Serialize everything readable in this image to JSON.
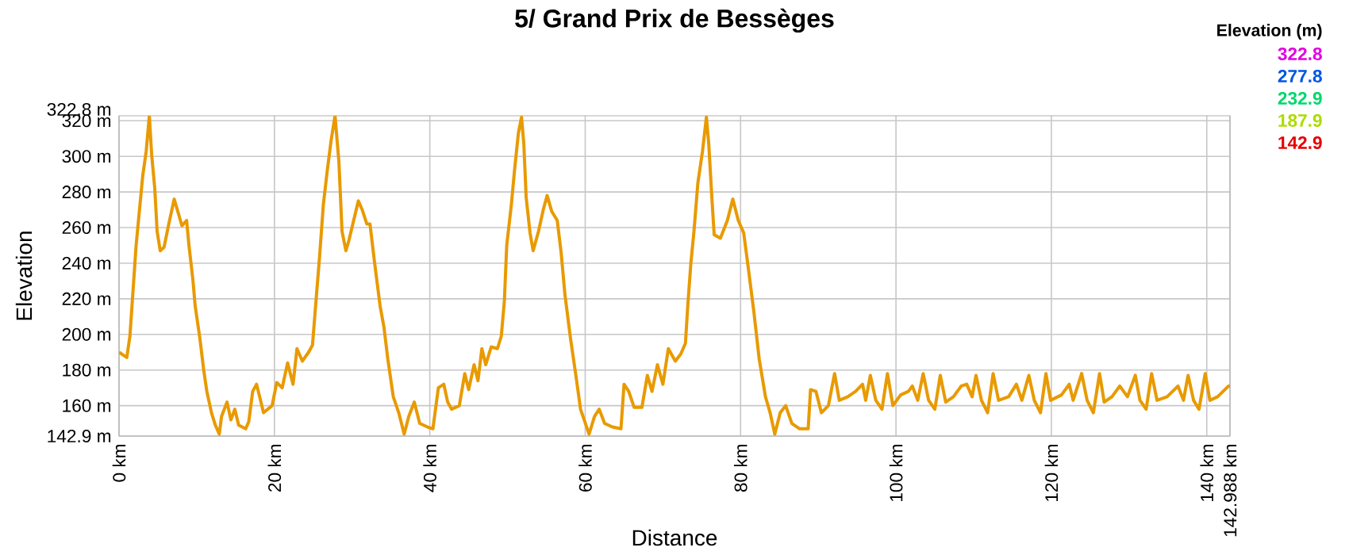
{
  "chart_data": {
    "type": "line",
    "title": "5/ Grand Prix de Bessèges",
    "xlabel": "Distance",
    "ylabel": "Elevation",
    "legend_title": "Elevation (m)",
    "annotations": [
      "322.8",
      "277.8",
      "232.9",
      "187.9",
      "142.9"
    ],
    "x": [
      0,
      1.0,
      1.4,
      1.7,
      2.2,
      2.7,
      3.05,
      3.5,
      3.9,
      4.2,
      4.6,
      4.9,
      5.3,
      5.8,
      6.4,
      7.1,
      7.7,
      8.1,
      8.7,
      9.0,
      9.5,
      9.8,
      10.4,
      10.9,
      11.3,
      11.9,
      12.4,
      12.9,
      13.2,
      13.9,
      14.4,
      14.9,
      15.4,
      16.3,
      16.7,
      17.2,
      17.7,
      18.1,
      18.6,
      19.7,
      20.3,
      21.0,
      21.7,
      22.4,
      22.9,
      23.6,
      24.4,
      24.9,
      25.3,
      25.8,
      26.3,
      26.8,
      27.3,
      27.8,
      28.3,
      28.7,
      29.2,
      29.6,
      30.2,
      30.8,
      31.3,
      31.9,
      32.3,
      32.9,
      33.6,
      34.1,
      34.6,
      35.3,
      36.0,
      36.7,
      37.3,
      38.0,
      38.7,
      39.7,
      40.4,
      41.1,
      41.8,
      42.3,
      42.8,
      43.8,
      44.5,
      45.0,
      45.7,
      46.2,
      46.7,
      47.2,
      47.9,
      48.7,
      49.2,
      49.6,
      49.9,
      50.5,
      50.9,
      51.4,
      51.8,
      52.1,
      52.4,
      52.9,
      53.3,
      54.0,
      54.6,
      55.1,
      55.7,
      56.4,
      56.9,
      57.4,
      58.1,
      58.8,
      59.4,
      60.5,
      61.2,
      61.8,
      62.5,
      63.5,
      64.6,
      65.0,
      65.6,
      66.3,
      67.3,
      68.0,
      68.6,
      69.3,
      70.0,
      70.7,
      71.6,
      72.3,
      72.9,
      73.2,
      73.6,
      74.0,
      74.5,
      75.1,
      75.6,
      75.9,
      76.3,
      76.6,
      77.4,
      78.3,
      79.0,
      79.7,
      80.4,
      81.0,
      81.7,
      82.4,
      83.2,
      83.8,
      84.4,
      85.1,
      85.8,
      86.6,
      87.6,
      88.7,
      89.0,
      89.7,
      90.4,
      91.3,
      92.1,
      92.7,
      93.8,
      94.8,
      95.7,
      96.1,
      96.7,
      97.4,
      98.2,
      98.9,
      99.6,
      100.6,
      101.6,
      102.1,
      102.8,
      103.5,
      104.2,
      105.0,
      105.7,
      106.4,
      107.4,
      108.4,
      109.1,
      109.8,
      110.3,
      111.0,
      111.8,
      112.5,
      113.2,
      114.5,
      115.5,
      116.2,
      117.1,
      117.8,
      118.6,
      119.3,
      119.9,
      121.3,
      122.3,
      122.8,
      123.9,
      124.6,
      125.4,
      126.2,
      126.8,
      127.8,
      128.8,
      129.8,
      130.8,
      131.4,
      132.2,
      132.9,
      133.6,
      134.9,
      136.3,
      137.0,
      137.6,
      138.3,
      139.0,
      139.8,
      140.4,
      141.4,
      142.8,
      142.988
    ],
    "series": [
      {
        "color": "#e89a00",
        "values": [
          190,
          187,
          199,
          218,
          250,
          273,
          289,
          303,
          322.8,
          301,
          282,
          258,
          247,
          249,
          262,
          276,
          267,
          261,
          264,
          250,
          231,
          216,
          198,
          180,
          168,
          156,
          149,
          144,
          154,
          162,
          152,
          158,
          149,
          147,
          151,
          168,
          172,
          165,
          156,
          160,
          173,
          170,
          184,
          172,
          192,
          185,
          190,
          194,
          216,
          243,
          273,
          292,
          309,
          322.8,
          297,
          258,
          247,
          253,
          264,
          275,
          270,
          262,
          262,
          240,
          216,
          204,
          186,
          165,
          156,
          144,
          154,
          162,
          150,
          148,
          147,
          170,
          172,
          162,
          158,
          160,
          178,
          169,
          183,
          174,
          192,
          183,
          193,
          192,
          199,
          219,
          250,
          273,
          292,
          313,
          322,
          307,
          277,
          257,
          247,
          258,
          270,
          278,
          269,
          264,
          246,
          222,
          198,
          177,
          158,
          144,
          154,
          158,
          150,
          148,
          147,
          172,
          168,
          159,
          159,
          177,
          168,
          183,
          172,
          192,
          185,
          189,
          195,
          216,
          240,
          258,
          285,
          303,
          322,
          307,
          277,
          256,
          254,
          264,
          276,
          264,
          257,
          237,
          213,
          186,
          165,
          156,
          144,
          156,
          160,
          150,
          147,
          147,
          169,
          168,
          156,
          160,
          178,
          163,
          165,
          168,
          172,
          163,
          177,
          163,
          158,
          178,
          160,
          166,
          168,
          171,
          163,
          178,
          163,
          158,
          177,
          162,
          165,
          171,
          172,
          165,
          177,
          163,
          156,
          178,
          163,
          165,
          172,
          163,
          177,
          163,
          156,
          178,
          163,
          166,
          172,
          163,
          178,
          163,
          156,
          178,
          162,
          165,
          171,
          165,
          177,
          163,
          158,
          178,
          163,
          165,
          171,
          163,
          177,
          163,
          158,
          178,
          163,
          165,
          171,
          171
        ]
      }
    ],
    "xlim": [
      0,
      142.988
    ],
    "ylim": [
      142.9,
      322.8
    ],
    "xticks": [
      {
        "value": 0,
        "label": "0 km"
      },
      {
        "value": 20,
        "label": "20 km"
      },
      {
        "value": 40,
        "label": "40 km"
      },
      {
        "value": 60,
        "label": "60 km"
      },
      {
        "value": 80,
        "label": "80 km"
      },
      {
        "value": 100,
        "label": "100 km"
      },
      {
        "value": 120,
        "label": "120 km"
      },
      {
        "value": 140,
        "label": "140 km"
      },
      {
        "value": 142.988,
        "label": "142.988 km"
      }
    ],
    "yticks": [
      {
        "value": 142.9,
        "label": "142.9 m"
      },
      {
        "value": 160,
        "label": "160 m"
      },
      {
        "value": 180,
        "label": "180 m"
      },
      {
        "value": 200,
        "label": "200 m"
      },
      {
        "value": 220,
        "label": "220 m"
      },
      {
        "value": 240,
        "label": "240 m"
      },
      {
        "value": 260,
        "label": "260 m"
      },
      {
        "value": 280,
        "label": "280 m"
      },
      {
        "value": 300,
        "label": "300 m"
      },
      {
        "value": 320,
        "label": "320 m"
      },
      {
        "value": 322.8,
        "label": "322.8 m"
      }
    ],
    "grid": true
  }
}
